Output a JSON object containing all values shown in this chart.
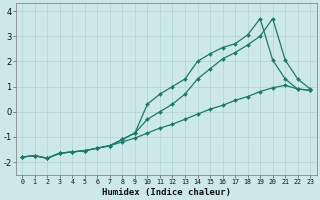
{
  "xlabel": "Humidex (Indice chaleur)",
  "xlim": [
    -0.5,
    23.5
  ],
  "ylim": [
    -2.5,
    4.3
  ],
  "yticks": [
    -2,
    -1,
    0,
    1,
    2,
    3,
    4
  ],
  "xticks": [
    0,
    1,
    2,
    3,
    4,
    5,
    6,
    7,
    8,
    9,
    10,
    11,
    12,
    13,
    14,
    15,
    16,
    17,
    18,
    19,
    20,
    21,
    22,
    23
  ],
  "bg_color": "#cce8e8",
  "line_color": "#1a7a6e",
  "grid_color": "#b8d5d5",
  "series1_x": [
    0,
    1,
    2,
    3,
    4,
    5,
    6,
    7,
    8,
    9,
    10,
    11,
    12,
    13,
    14,
    15,
    16,
    17,
    18,
    19,
    20,
    21,
    22,
    23
  ],
  "series1_y": [
    -1.8,
    -1.75,
    -1.85,
    -1.65,
    -1.6,
    -1.55,
    -1.45,
    -1.35,
    -1.2,
    -1.05,
    -0.85,
    -0.65,
    -0.5,
    -0.3,
    -0.1,
    0.1,
    0.25,
    0.45,
    0.6,
    0.8,
    0.95,
    1.05,
    0.9,
    0.85
  ],
  "series2_x": [
    0,
    1,
    2,
    3,
    4,
    5,
    6,
    7,
    8,
    9,
    10,
    11,
    12,
    13,
    14,
    15,
    16,
    17,
    18,
    19,
    20,
    21,
    22,
    23
  ],
  "series2_y": [
    -1.8,
    -1.75,
    -1.85,
    -1.65,
    -1.6,
    -1.55,
    -1.45,
    -1.35,
    -1.1,
    -0.85,
    -0.3,
    0.0,
    0.3,
    0.7,
    1.3,
    1.7,
    2.1,
    2.35,
    2.65,
    3.0,
    3.7,
    2.05,
    1.3,
    0.9
  ],
  "series3_x": [
    0,
    1,
    2,
    3,
    4,
    5,
    6,
    7,
    8,
    9,
    10,
    11,
    12,
    13,
    14,
    15,
    16,
    17,
    18,
    19,
    20,
    21,
    22,
    23
  ],
  "series3_y": [
    -1.8,
    -1.75,
    -1.85,
    -1.65,
    -1.6,
    -1.55,
    -1.45,
    -1.35,
    -1.1,
    -0.85,
    0.3,
    0.7,
    1.0,
    1.3,
    2.0,
    2.3,
    2.55,
    2.7,
    3.05,
    3.7,
    2.05,
    1.3,
    0.9,
    0.85
  ]
}
